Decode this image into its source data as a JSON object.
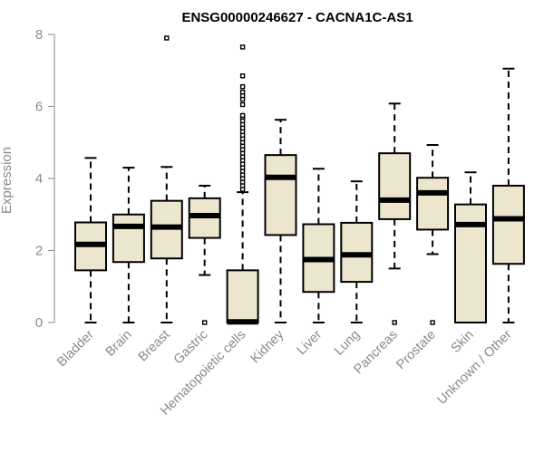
{
  "chart_data": {
    "type": "box",
    "title": "ENSG00000246627 - CACNA1C-AS1",
    "xlabel": "",
    "ylabel": "Expression",
    "ylim": [
      0,
      8
    ],
    "yticks": [
      0,
      2,
      4,
      6,
      8
    ],
    "grid": false,
    "box_fill": "#ede6cf",
    "box_stroke": "#000000",
    "axis_color": "#8a8a8a",
    "categories": [
      "Bladder",
      "Brain",
      "Breast",
      "Gastric",
      "Hematopoietic cells",
      "Kidney",
      "Liver",
      "Lung",
      "Pancreas",
      "Prostate",
      "Skin",
      "Unknown / Other"
    ],
    "boxes": [
      {
        "category": "Bladder",
        "min": 0,
        "q1": 1.45,
        "median": 2.17,
        "q3": 2.78,
        "max": 4.57,
        "outliers": []
      },
      {
        "category": "Brain",
        "min": 0,
        "q1": 1.68,
        "median": 2.67,
        "q3": 3.0,
        "max": 4.3,
        "outliers": []
      },
      {
        "category": "Breast",
        "min": 0,
        "q1": 1.78,
        "median": 2.65,
        "q3": 3.38,
        "max": 4.32,
        "outliers": [
          7.9
        ]
      },
      {
        "category": "Gastric",
        "min": 1.32,
        "q1": 2.35,
        "median": 2.97,
        "q3": 3.45,
        "max": 3.8,
        "outliers": [
          0
        ]
      },
      {
        "category": "Hematopoietic cells",
        "min": 0,
        "q1": 0,
        "median": 0.02,
        "q3": 1.45,
        "max": 3.62,
        "outliers": [
          3.7,
          3.8,
          3.9,
          4.0,
          4.1,
          4.2,
          4.3,
          4.4,
          4.5,
          4.6,
          4.7,
          4.8,
          4.9,
          5.0,
          5.1,
          5.2,
          5.3,
          5.4,
          5.5,
          5.6,
          5.7,
          5.75,
          6.05,
          6.2,
          6.3,
          6.4,
          6.55,
          6.85,
          7.65
        ]
      },
      {
        "category": "Kidney",
        "min": 0,
        "q1": 2.43,
        "median": 4.03,
        "q3": 4.65,
        "max": 5.63,
        "outliers": []
      },
      {
        "category": "Liver",
        "min": 0,
        "q1": 0.85,
        "median": 1.75,
        "q3": 2.73,
        "max": 4.27,
        "outliers": []
      },
      {
        "category": "Lung",
        "min": 0,
        "q1": 1.13,
        "median": 1.88,
        "q3": 2.77,
        "max": 3.92,
        "outliers": []
      },
      {
        "category": "Pancreas",
        "min": 1.5,
        "q1": 2.87,
        "median": 3.4,
        "q3": 4.7,
        "max": 6.08,
        "outliers": [
          0
        ]
      },
      {
        "category": "Prostate",
        "min": 1.9,
        "q1": 2.58,
        "median": 3.6,
        "q3": 4.02,
        "max": 4.93,
        "outliers": [
          0
        ]
      },
      {
        "category": "Skin",
        "min": 0,
        "q1": 0,
        "median": 2.72,
        "q3": 3.28,
        "max": 4.17,
        "outliers": []
      },
      {
        "category": "Unknown / Other",
        "min": 0,
        "q1": 1.63,
        "median": 2.88,
        "q3": 3.8,
        "max": 7.05,
        "outliers": []
      }
    ]
  }
}
